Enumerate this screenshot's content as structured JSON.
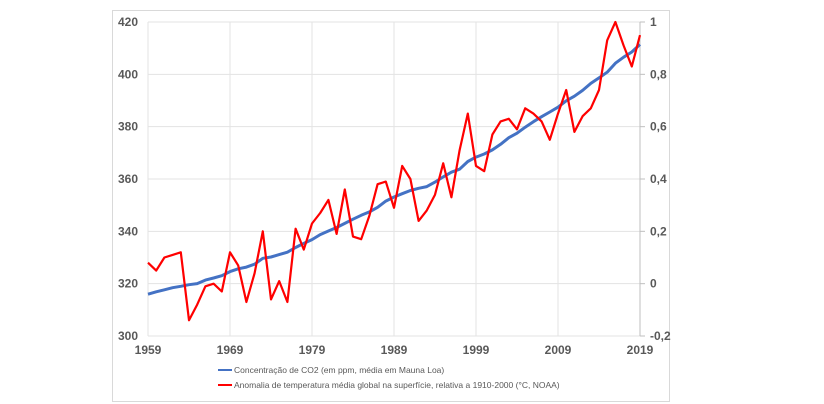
{
  "chart_data": {
    "type": "line",
    "title": "",
    "x": [
      1959,
      1960,
      1961,
      1962,
      1963,
      1964,
      1965,
      1966,
      1967,
      1968,
      1969,
      1970,
      1971,
      1972,
      1973,
      1974,
      1975,
      1976,
      1977,
      1978,
      1979,
      1980,
      1981,
      1982,
      1983,
      1984,
      1985,
      1986,
      1987,
      1988,
      1989,
      1990,
      1991,
      1992,
      1993,
      1994,
      1995,
      1996,
      1997,
      1998,
      1999,
      2000,
      2001,
      2002,
      2003,
      2004,
      2005,
      2006,
      2007,
      2008,
      2009,
      2010,
      2011,
      2012,
      2013,
      2014,
      2015,
      2016,
      2017,
      2018,
      2019
    ],
    "x_ticks": [
      "1959",
      "1969",
      "1979",
      "1989",
      "1999",
      "2009",
      "2019"
    ],
    "x_tick_values": [
      1959,
      1969,
      1979,
      1989,
      1999,
      2009,
      2019
    ],
    "xlim": [
      1959,
      2019
    ],
    "y_left": {
      "lim": [
        300,
        420
      ],
      "ticks": [
        "300",
        "320",
        "340",
        "360",
        "380",
        "400",
        "420"
      ],
      "tick_values": [
        300,
        320,
        340,
        360,
        380,
        400,
        420
      ]
    },
    "y_right": {
      "lim": [
        -0.2,
        1.0
      ],
      "ticks": [
        "-0,2",
        "0",
        "0,2",
        "0,4",
        "0,6",
        "0,8",
        "1"
      ],
      "tick_values": [
        -0.2,
        0,
        0.2,
        0.4,
        0.6,
        0.8,
        1.0
      ]
    },
    "grid": true,
    "legend_position": "bottom",
    "series": [
      {
        "name": "Concentração de CO2 (em ppm, média em Mauna Loa)",
        "axis": "left",
        "color": "#4472C4",
        "values": [
          315.97,
          316.91,
          317.64,
          318.45,
          318.99,
          319.62,
          320.04,
          321.38,
          322.16,
          323.04,
          324.62,
          325.68,
          326.32,
          327.45,
          329.68,
          330.18,
          331.11,
          332.04,
          333.83,
          335.4,
          336.84,
          338.75,
          340.11,
          341.45,
          343.05,
          344.65,
          346.12,
          347.42,
          349.19,
          351.57,
          353.12,
          354.39,
          355.61,
          356.45,
          357.1,
          358.83,
          360.82,
          362.61,
          363.73,
          366.7,
          368.38,
          369.55,
          371.14,
          373.28,
          375.8,
          377.52,
          379.8,
          381.9,
          383.79,
          385.6,
          387.43,
          389.9,
          391.65,
          393.85,
          396.52,
          398.65,
          400.83,
          404.24,
          406.55,
          408.52,
          411.44
        ]
      },
      {
        "name": "Anomalia de temperatura média global na superfície, relativa a 1910-2000 (°C, NOAA)",
        "axis": "right",
        "color": "#FF0000",
        "values": [
          0.08,
          0.05,
          0.1,
          0.11,
          0.12,
          -0.14,
          -0.08,
          -0.01,
          0.0,
          -0.03,
          0.12,
          0.07,
          -0.07,
          0.04,
          0.2,
          -0.06,
          0.01,
          -0.07,
          0.21,
          0.13,
          0.23,
          0.27,
          0.32,
          0.19,
          0.36,
          0.18,
          0.17,
          0.26,
          0.38,
          0.39,
          0.29,
          0.45,
          0.4,
          0.24,
          0.28,
          0.34,
          0.46,
          0.33,
          0.51,
          0.65,
          0.45,
          0.43,
          0.57,
          0.62,
          0.63,
          0.59,
          0.67,
          0.65,
          0.62,
          0.55,
          0.65,
          0.74,
          0.58,
          0.64,
          0.67,
          0.74,
          0.93,
          1.0,
          0.91,
          0.83,
          0.95
        ]
      }
    ]
  }
}
